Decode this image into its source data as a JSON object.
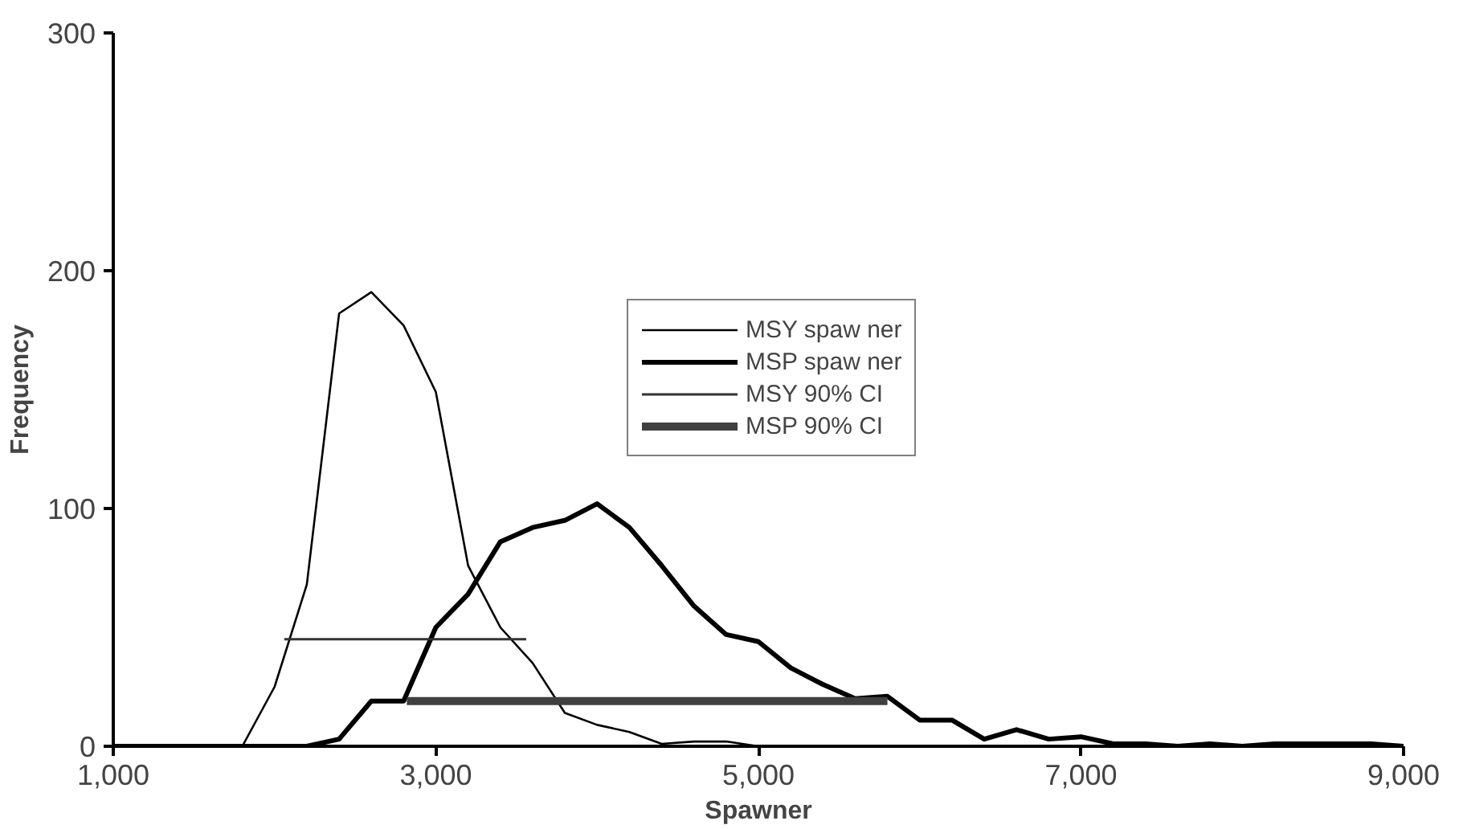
{
  "chart_data": {
    "type": "line",
    "xlabel": "Spawner",
    "ylabel": "Frequency",
    "xlim": [
      1000,
      9000
    ],
    "ylim": [
      0,
      300
    ],
    "xticks": [
      {
        "value": 1000,
        "label": "1,000"
      },
      {
        "value": 3000,
        "label": "3,000"
      },
      {
        "value": 5000,
        "label": "5,000"
      },
      {
        "value": 7000,
        "label": "7,000"
      },
      {
        "value": 9000,
        "label": "9,000"
      }
    ],
    "yticks": [
      0,
      100,
      200,
      300
    ],
    "grid": false,
    "legend": "top right",
    "x": [
      1000,
      1200,
      1400,
      1600,
      1800,
      2000,
      2200,
      2400,
      2600,
      2800,
      3000,
      3200,
      3400,
      3600,
      3800,
      4000,
      4200,
      4400,
      4600,
      4800,
      5000,
      5200,
      5400,
      5600,
      5800,
      6000,
      6200,
      6400,
      6600,
      6800,
      7000,
      7200,
      7400,
      7600,
      7800,
      8000,
      8200,
      8400,
      8600,
      8800,
      9000
    ],
    "series": [
      {
        "name": "MSY spaw ner",
        "color": "#000000",
        "values": [
          0,
          0,
          0,
          0,
          0,
          25,
          68,
          182,
          191,
          177,
          149,
          76,
          50,
          35,
          14,
          9,
          6,
          1,
          2,
          2,
          0,
          0,
          0,
          0,
          0,
          0,
          0,
          0,
          0,
          0,
          0,
          0,
          0,
          0,
          0,
          0,
          0,
          0,
          0,
          0,
          0
        ]
      },
      {
        "name": "MSP spaw ner",
        "color": "#000000",
        "values": [
          0,
          0,
          0,
          0,
          0,
          0,
          0,
          3,
          19,
          19,
          50,
          64,
          86,
          92,
          95,
          102,
          92,
          76,
          59,
          47,
          44,
          33,
          26,
          20,
          21,
          11,
          11,
          3,
          7,
          3,
          4,
          1,
          1,
          0,
          1,
          0,
          1,
          1,
          1,
          1,
          0
        ]
      },
      {
        "name": "MSY 90% CI",
        "color": "#333333",
        "x": [
          2060,
          3560
        ],
        "values": [
          45,
          45
        ]
      },
      {
        "name": "MSP 90% CI",
        "color": "#404040",
        "x": [
          2820,
          5800
        ],
        "values": [
          19,
          19
        ]
      }
    ]
  }
}
